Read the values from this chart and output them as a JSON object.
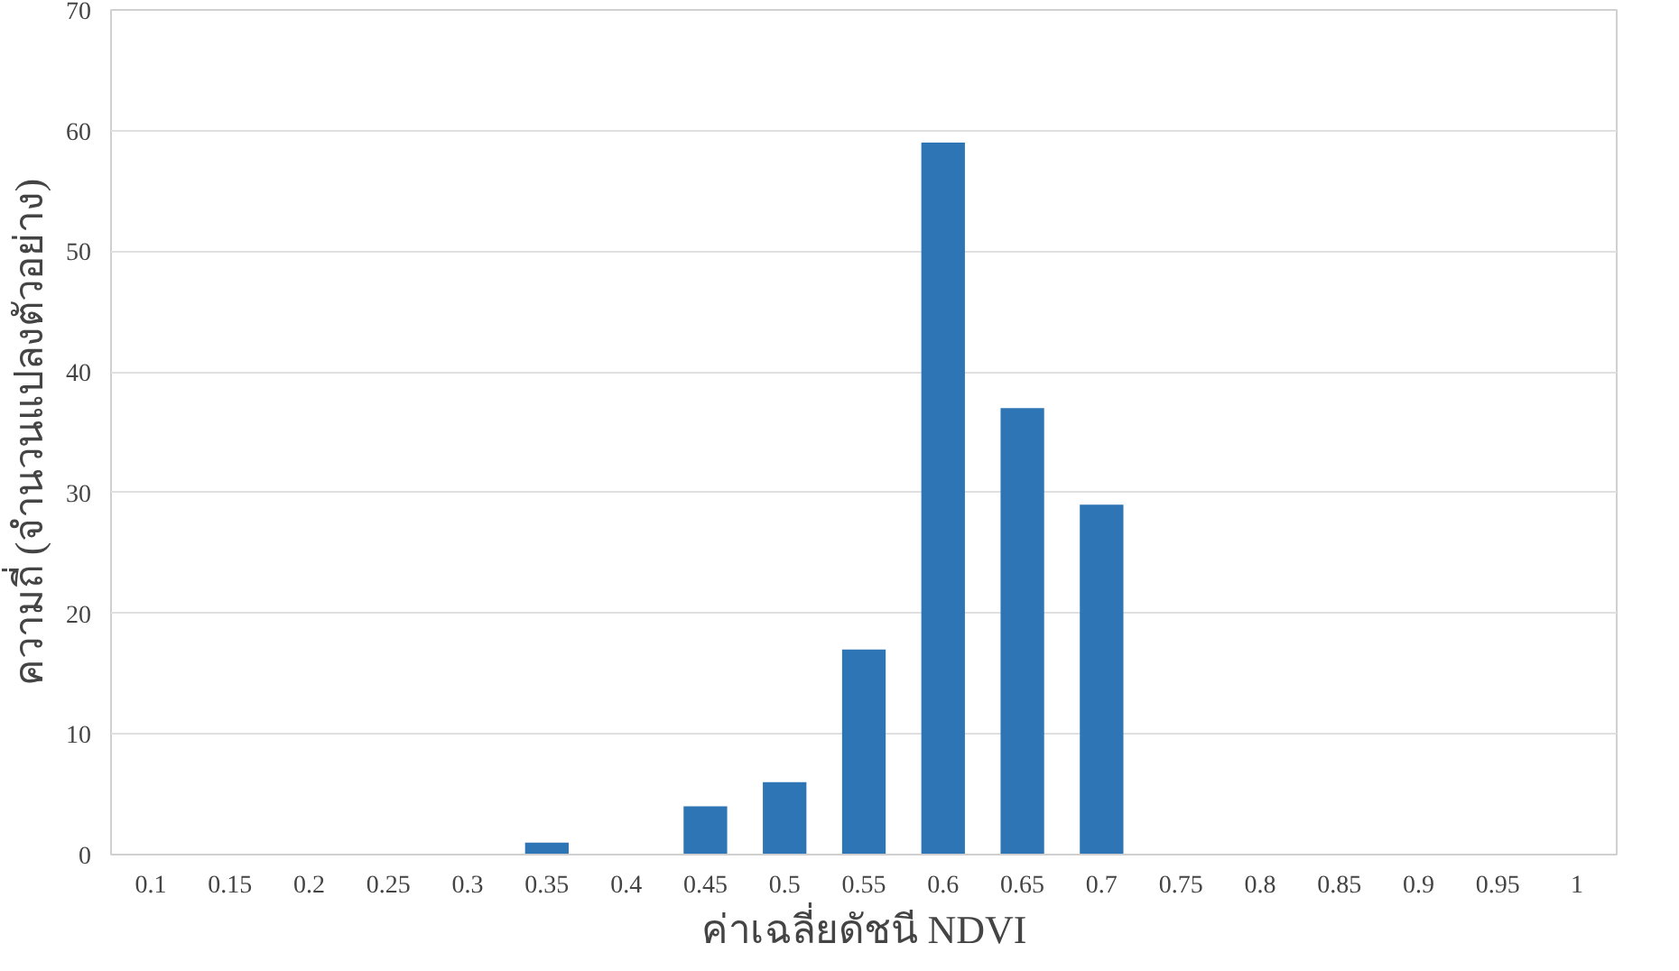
{
  "chart_data": {
    "type": "bar",
    "xlabel": "ค่าเฉลี่ยดัชนี NDVI",
    "ylabel": "ความถี่ (จำนวนแปลงตัวอย่าง)",
    "categories": [
      "0.1",
      "0.15",
      "0.2",
      "0.25",
      "0.3",
      "0.35",
      "0.4",
      "0.45",
      "0.5",
      "0.55",
      "0.6",
      "0.65",
      "0.7",
      "0.75",
      "0.8",
      "0.85",
      "0.9",
      "0.95",
      "1"
    ],
    "values": [
      0,
      0,
      0,
      0,
      0,
      1,
      0,
      4,
      6,
      17,
      59,
      37,
      29,
      0,
      0,
      0,
      0,
      0,
      0
    ],
    "color": "#2e75b6",
    "ylim": [
      0,
      70
    ],
    "yticks": [
      0,
      10,
      20,
      30,
      40,
      50,
      60,
      70
    ],
    "grid": "y"
  }
}
